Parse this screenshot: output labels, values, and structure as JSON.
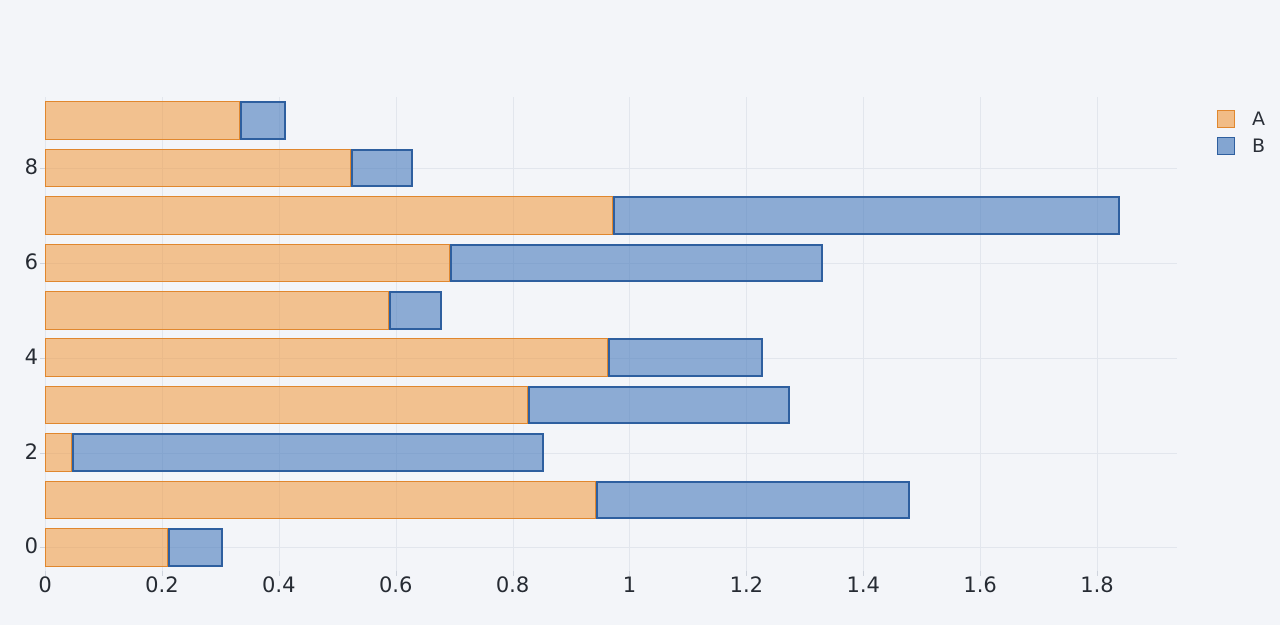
{
  "chart_data": {
    "type": "bar",
    "orientation": "horizontal",
    "stacked": true,
    "title": "",
    "xlabel": "",
    "ylabel": "",
    "categories": [
      0,
      1,
      2,
      3,
      4,
      5,
      6,
      7,
      8,
      9
    ],
    "series": [
      {
        "name": "A",
        "fill_color": "#f0b27c",
        "edge_color": "#e0872e",
        "values": [
          0.211,
          0.943,
          0.046,
          0.826,
          0.964,
          0.589,
          0.693,
          0.972,
          0.524,
          0.333
        ]
      },
      {
        "name": "B",
        "fill_color": "#8cabd4",
        "edge_color": "#2e5f9f",
        "values": [
          0.094,
          0.537,
          0.808,
          0.449,
          0.264,
          0.091,
          0.638,
          0.867,
          0.105,
          0.079
        ]
      }
    ],
    "xlim": [
      0,
      1.937
    ],
    "xticks": [
      0,
      0.2,
      0.4,
      0.6,
      0.8,
      1,
      1.2,
      1.4,
      1.6,
      1.8
    ],
    "xtick_labels": [
      "0",
      "0.2",
      "0.4",
      "0.6",
      "0.8",
      "1",
      "1.2",
      "1.4",
      "1.6",
      "1.8"
    ],
    "yticks": [
      0,
      2,
      4,
      6,
      8
    ],
    "ytick_labels": [
      "0",
      "2",
      "4",
      "6",
      "8"
    ],
    "legend_position": "top-right",
    "grid": true,
    "background_color": "#f3f5f9",
    "gridline_color": "#e2e6ed"
  },
  "legend": {
    "item_a": "A",
    "item_b": "B"
  }
}
